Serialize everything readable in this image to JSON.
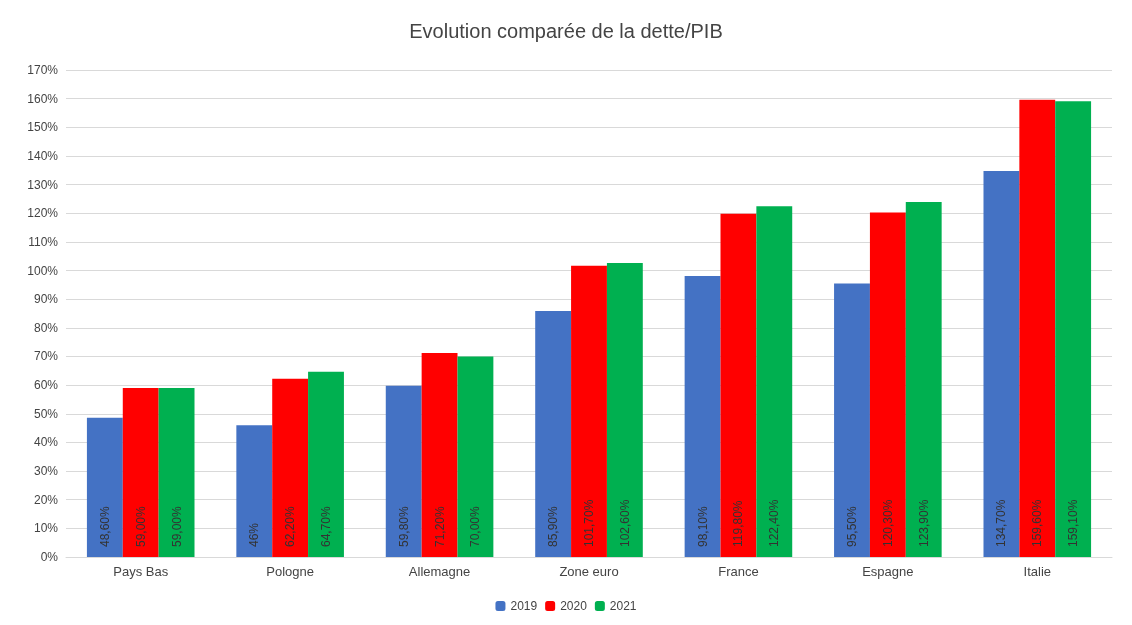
{
  "chart_data": {
    "type": "bar",
    "title": "Evolution comparée de la dette/PIB",
    "categories": [
      "Pays Bas",
      "Pologne",
      "Allemagne",
      "Zone euro",
      "France",
      "Espagne",
      "Italie"
    ],
    "series": [
      {
        "name": "2019",
        "color": "#4472c4",
        "values": [
          48.6,
          46,
          59.8,
          85.9,
          98.1,
          95.5,
          134.7
        ],
        "value_labels": [
          "48,60%",
          "46%",
          "59,80%",
          "85,90%",
          "98,10%",
          "95,50%",
          "134,70%"
        ]
      },
      {
        "name": "2020",
        "color": "#ff0000",
        "values": [
          59,
          62.2,
          71.2,
          101.7,
          119.8,
          120.3,
          159.6
        ],
        "value_labels": [
          "59,00%",
          "62,20%",
          "71,20%",
          "101,70%",
          "119,80%",
          "120,30%",
          "159,60%"
        ]
      },
      {
        "name": "2021",
        "color": "#00b050",
        "values": [
          59,
          64.7,
          70,
          102.6,
          122.4,
          123.9,
          159.1
        ],
        "value_labels": [
          "59,00%",
          "64,70%",
          "70,00%",
          "102,60%",
          "122,40%",
          "123,90%",
          "159,10%"
        ]
      }
    ],
    "ylim": [
      0,
      170
    ],
    "yticks": [
      {
        "value": 0,
        "label": "0%"
      },
      {
        "value": 10,
        "label": "10%"
      },
      {
        "value": 20,
        "label": "20%"
      },
      {
        "value": 30,
        "label": "30%"
      },
      {
        "value": 40,
        "label": "40%"
      },
      {
        "value": 50,
        "label": "50%"
      },
      {
        "value": 60,
        "label": "60%"
      },
      {
        "value": 70,
        "label": "70%"
      },
      {
        "value": 80,
        "label": "80%"
      },
      {
        "value": 90,
        "label": "90%"
      },
      {
        "value": 100,
        "label": "100%"
      },
      {
        "value": 110,
        "label": "110%"
      },
      {
        "value": 120,
        "label": "120%"
      },
      {
        "value": 130,
        "label": "130%"
      },
      {
        "value": 140,
        "label": "140%"
      },
      {
        "value": 150,
        "label": "150%"
      },
      {
        "value": 160,
        "label": "160%"
      },
      {
        "value": 170,
        "label": "170%"
      }
    ],
    "grid": "y",
    "legend": "bottom"
  }
}
